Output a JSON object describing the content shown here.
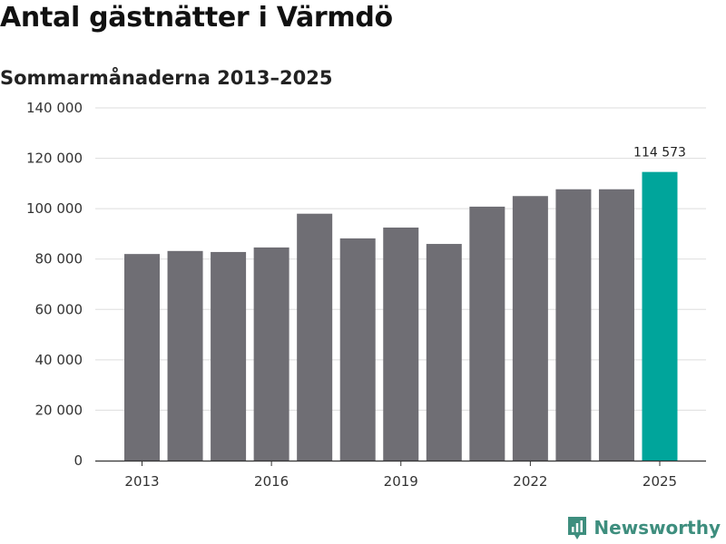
{
  "title": "Antal gästnätter i Värmdö",
  "subtitle": "Sommarmånaderna 2013–2025",
  "brand": {
    "name": "Newsworthy",
    "icon": "newsworthy-logo-icon",
    "color": "#3e8e7e"
  },
  "colors": {
    "bar": "#6f6e74",
    "highlight": "#00a59b",
    "grid": "#dddddd",
    "axis": "#333333"
  },
  "chart_data": {
    "type": "bar",
    "categories": [
      "2013",
      "2014",
      "2015",
      "2016",
      "2017",
      "2018",
      "2019",
      "2020",
      "2021",
      "2022",
      "2023",
      "2024",
      "2025"
    ],
    "values": [
      82000,
      83200,
      82800,
      84600,
      98000,
      88200,
      92500,
      86000,
      100800,
      105000,
      107700,
      107700,
      114573
    ],
    "highlight_index": 12,
    "data_labels": {
      "12": "114 573"
    },
    "x_tick_labels": [
      "2013",
      "2016",
      "2019",
      "2022",
      "2025"
    ],
    "x_tick_indices": [
      0,
      3,
      6,
      9,
      12
    ],
    "y_ticks": [
      0,
      20000,
      40000,
      60000,
      80000,
      100000,
      120000,
      140000
    ],
    "y_tick_labels": [
      "0",
      "20 000",
      "40 000",
      "60 000",
      "80 000",
      "100 000",
      "120 000",
      "140 000"
    ],
    "ylim": [
      0,
      140000
    ],
    "grid": true,
    "xlabel": "",
    "ylabel": ""
  }
}
